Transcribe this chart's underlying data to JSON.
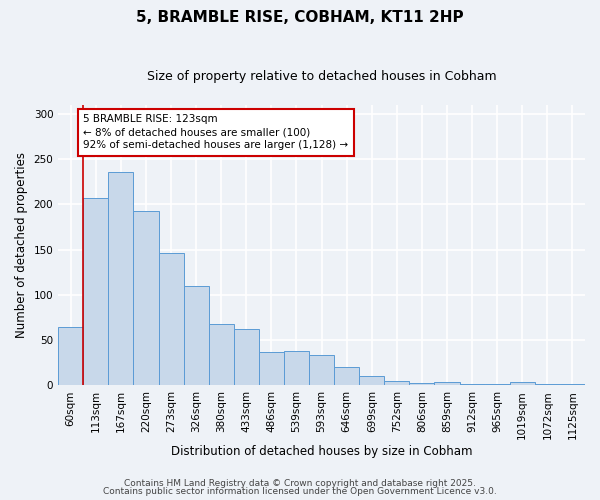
{
  "title": "5, BRAMBLE RISE, COBHAM, KT11 2HP",
  "subtitle": "Size of property relative to detached houses in Cobham",
  "xlabel": "Distribution of detached houses by size in Cobham",
  "ylabel": "Number of detached properties",
  "bar_labels": [
    "60sqm",
    "113sqm",
    "167sqm",
    "220sqm",
    "273sqm",
    "326sqm",
    "380sqm",
    "433sqm",
    "486sqm",
    "539sqm",
    "593sqm",
    "646sqm",
    "699sqm",
    "752sqm",
    "806sqm",
    "859sqm",
    "912sqm",
    "965sqm",
    "1019sqm",
    "1072sqm",
    "1125sqm"
  ],
  "bar_values": [
    65,
    207,
    236,
    193,
    146,
    110,
    68,
    62,
    37,
    38,
    33,
    20,
    10,
    5,
    3,
    4,
    2,
    1,
    4,
    1,
    1
  ],
  "bar_color": "#c8d8ea",
  "bar_edge_color": "#5b9bd5",
  "vline_x": 0.5,
  "vline_color": "#cc0000",
  "annotation_text": "5 BRAMBLE RISE: 123sqm\n← 8% of detached houses are smaller (100)\n92% of semi-detached houses are larger (1,128) →",
  "annotation_box_color": "#ffffff",
  "annotation_box_edge": "#cc0000",
  "ylim": [
    0,
    310
  ],
  "yticks": [
    0,
    50,
    100,
    150,
    200,
    250,
    300
  ],
  "footer1": "Contains HM Land Registry data © Crown copyright and database right 2025.",
  "footer2": "Contains public sector information licensed under the Open Government Licence v3.0.",
  "background_color": "#eef2f7",
  "plot_background": "#eef2f7",
  "grid_color": "#ffffff",
  "title_fontsize": 11,
  "subtitle_fontsize": 9,
  "axis_label_fontsize": 8.5,
  "tick_fontsize": 7.5,
  "footer_fontsize": 6.5,
  "annotation_fontsize": 7.5
}
